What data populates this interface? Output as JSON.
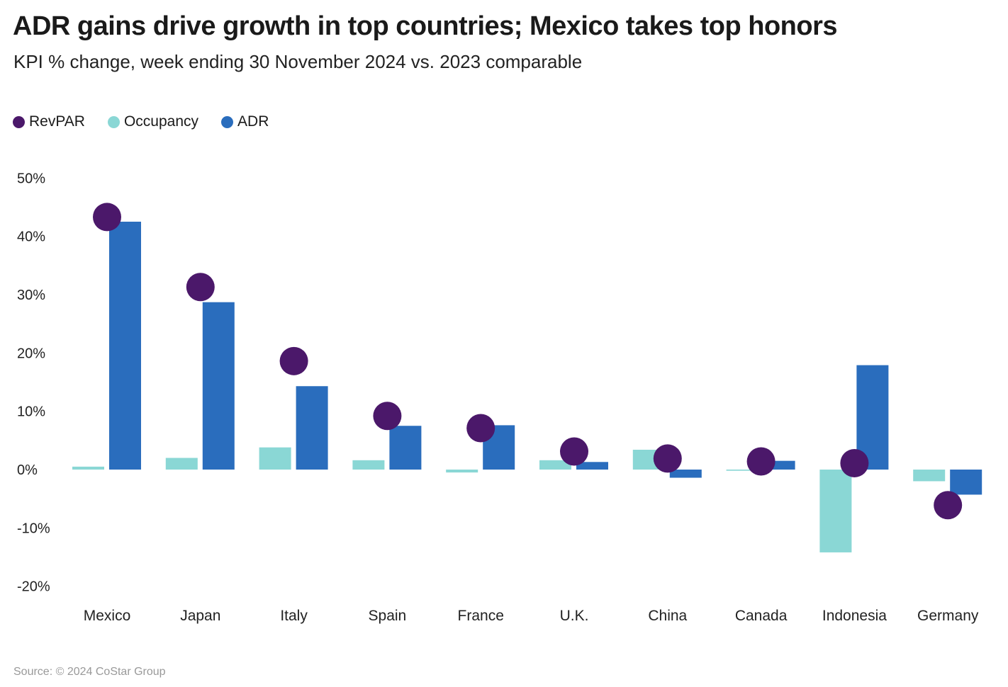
{
  "chart_data": {
    "type": "bar",
    "title": "ADR gains drive growth in top countries; Mexico takes top honors",
    "subtitle": "KPI % change, week ending 30 November 2024 vs. 2023 comparable",
    "categories": [
      "Mexico",
      "Japan",
      "Italy",
      "Spain",
      "France",
      "U.K.",
      "China",
      "Canada",
      "Indonesia",
      "Germany"
    ],
    "series": [
      {
        "name": "Occupancy",
        "kind": "bar",
        "color": "#8ad7d5",
        "values": [
          0.5,
          2.0,
          3.8,
          1.6,
          -0.5,
          1.6,
          3.4,
          -0.2,
          -14.2,
          -2.0
        ]
      },
      {
        "name": "ADR",
        "kind": "bar",
        "color": "#2a6dbd",
        "values": [
          42.5,
          28.7,
          14.3,
          7.5,
          7.6,
          1.3,
          -1.4,
          1.5,
          17.9,
          -4.3
        ]
      },
      {
        "name": "RevPAR",
        "kind": "dot",
        "color": "#4b186a",
        "values": [
          43.3,
          31.3,
          18.6,
          9.2,
          7.1,
          3.1,
          1.9,
          1.4,
          1.1,
          -6.1
        ]
      }
    ],
    "legend_order": [
      "RevPAR",
      "Occupancy",
      "ADR"
    ],
    "ylim": [
      -20,
      50
    ],
    "yticks": [
      50,
      40,
      30,
      20,
      10,
      0,
      -10,
      -20
    ],
    "ytick_labels": [
      "50%",
      "40%",
      "30%",
      "20%",
      "10%",
      "0%",
      "-10%",
      "-20%"
    ],
    "xlabel": "",
    "ylabel": "",
    "grid": false,
    "legend_position": "top-left"
  },
  "source": "Source: © 2024 CoStar Group"
}
